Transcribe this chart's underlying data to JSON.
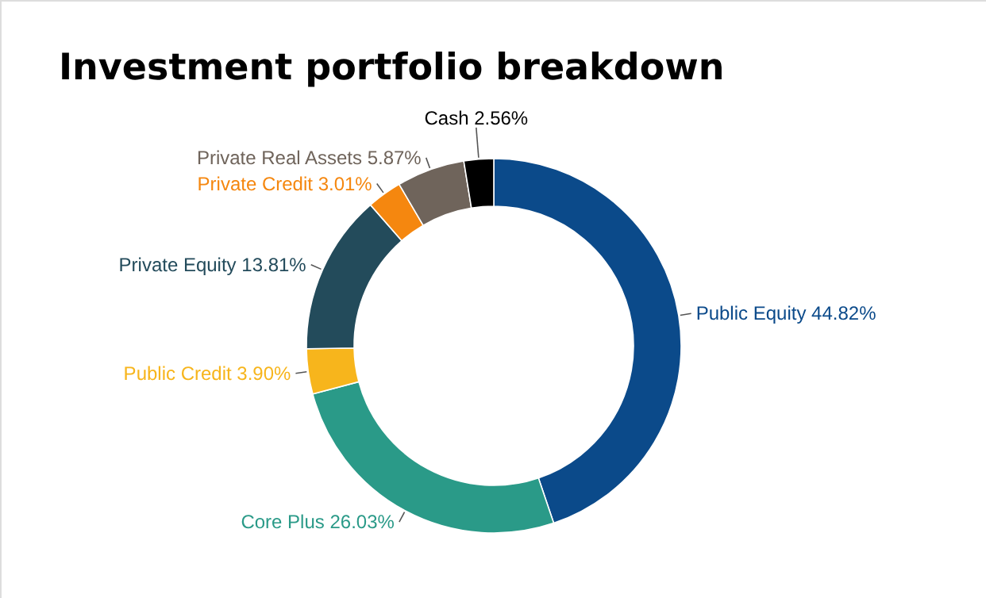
{
  "chart_data": {
    "type": "donut",
    "title": "Investment portfolio breakdown",
    "categories": [
      "Public Equity",
      "Core Plus",
      "Public Credit",
      "Private Equity",
      "Private Credit",
      "Private Real Assets",
      "Cash"
    ],
    "values": [
      44.82,
      26.03,
      3.9,
      13.81,
      3.01,
      5.87,
      2.56
    ],
    "value_labels": [
      "44.82%",
      "26.03%",
      "3.90%",
      "13.81%",
      "3.01%",
      "5.87%",
      "2.56%"
    ],
    "colors": [
      "#0b4a8a",
      "#2a9a88",
      "#f7b51c",
      "#234b5b",
      "#f5870f",
      "#6f645b",
      "#000000"
    ]
  }
}
